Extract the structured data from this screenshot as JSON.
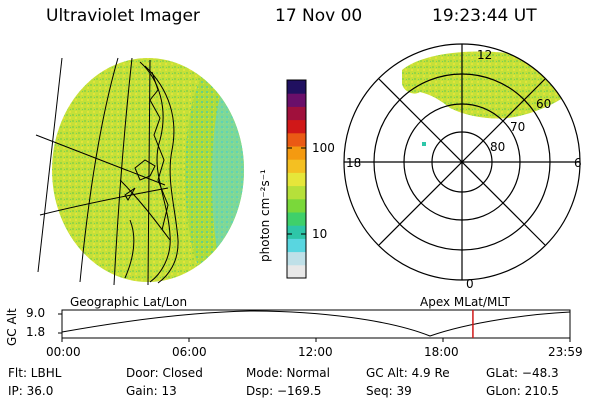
{
  "header": {
    "instrument": "Ultraviolet Imager",
    "date": "17 Nov 00",
    "time": "19:23:44 UT"
  },
  "colorbar": {
    "unit_label": "photon cm⁻²s⁻¹",
    "ticks": [
      "100",
      "10"
    ],
    "colors": [
      "#e8e8e8",
      "#bfe0e8",
      "#59d6e0",
      "#2ec6a8",
      "#3fd06a",
      "#7ad83a",
      "#b6e03a",
      "#e6e63a",
      "#f4c022",
      "#f49a10",
      "#ea5a14",
      "#d01818",
      "#a0103c",
      "#6a0f6a",
      "#201060"
    ]
  },
  "geo_panel": {
    "label": "Geographic Lat/Lon"
  },
  "polar_panel": {
    "label": "Apex MLat/MLT",
    "mlt_labels": {
      "top": "12",
      "left": "18",
      "right": "6",
      "bottom": "0"
    },
    "lat_labels": [
      "60",
      "70",
      "80"
    ]
  },
  "alt_plot": {
    "ylabel": "GC Alt",
    "yticks": [
      "9.0",
      "1.8"
    ],
    "xticks": [
      "00:00",
      "06:00",
      "12:00",
      "18:00",
      "23:59"
    ],
    "current_time_hours": 19.4,
    "marker_color": "#d01818"
  },
  "info": {
    "flt": "Flt: LBHL",
    "ip": "IP: 36.0",
    "door": "Door: Closed",
    "gain": "Gain: 13",
    "mode": "Mode: Normal",
    "dsp": "Dsp: −169.5",
    "gcalt": "GC Alt: 4.9 Re",
    "seq": "Seq: 39",
    "glat": "GLat: −48.3",
    "glon": "GLon: 210.5"
  }
}
